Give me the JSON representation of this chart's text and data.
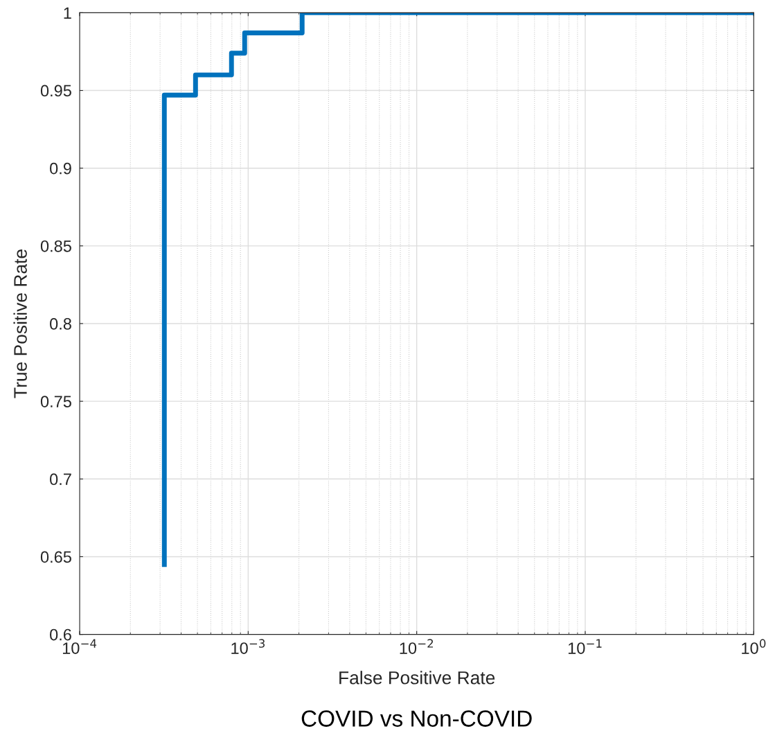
{
  "chart_data": {
    "type": "step",
    "title": "COVID vs Non-COVID",
    "xlabel": "False Positive Rate",
    "ylabel": "True Positive Rate",
    "log": "x",
    "grid": true,
    "xlim": [
      0.0001,
      1
    ],
    "xticks": [
      {
        "value": 0.0001,
        "label": "10$^{−4}$"
      },
      {
        "value": 0.001,
        "label": "10$^{−3}$"
      },
      {
        "value": 0.01,
        "label": "10$^{−2}$"
      },
      {
        "value": 0.1,
        "label": "10$^{−1}$"
      },
      {
        "value": 1,
        "label": "10$^{0}$"
      }
    ],
    "ylim": [
      0.6,
      1
    ],
    "yticks": [
      0.6,
      0.65,
      0.7,
      0.75,
      0.8,
      0.85,
      0.9,
      0.95,
      1
    ],
    "series": [
      {
        "color": "#0072bd",
        "x": [
          0.000318,
          0.000318,
          0.000487,
          0.000796,
          0.000953,
          0.00209,
          1
        ],
        "values": [
          0.645,
          0.947,
          0.96,
          0.974,
          0.987,
          1,
          1
        ]
      }
    ]
  }
}
